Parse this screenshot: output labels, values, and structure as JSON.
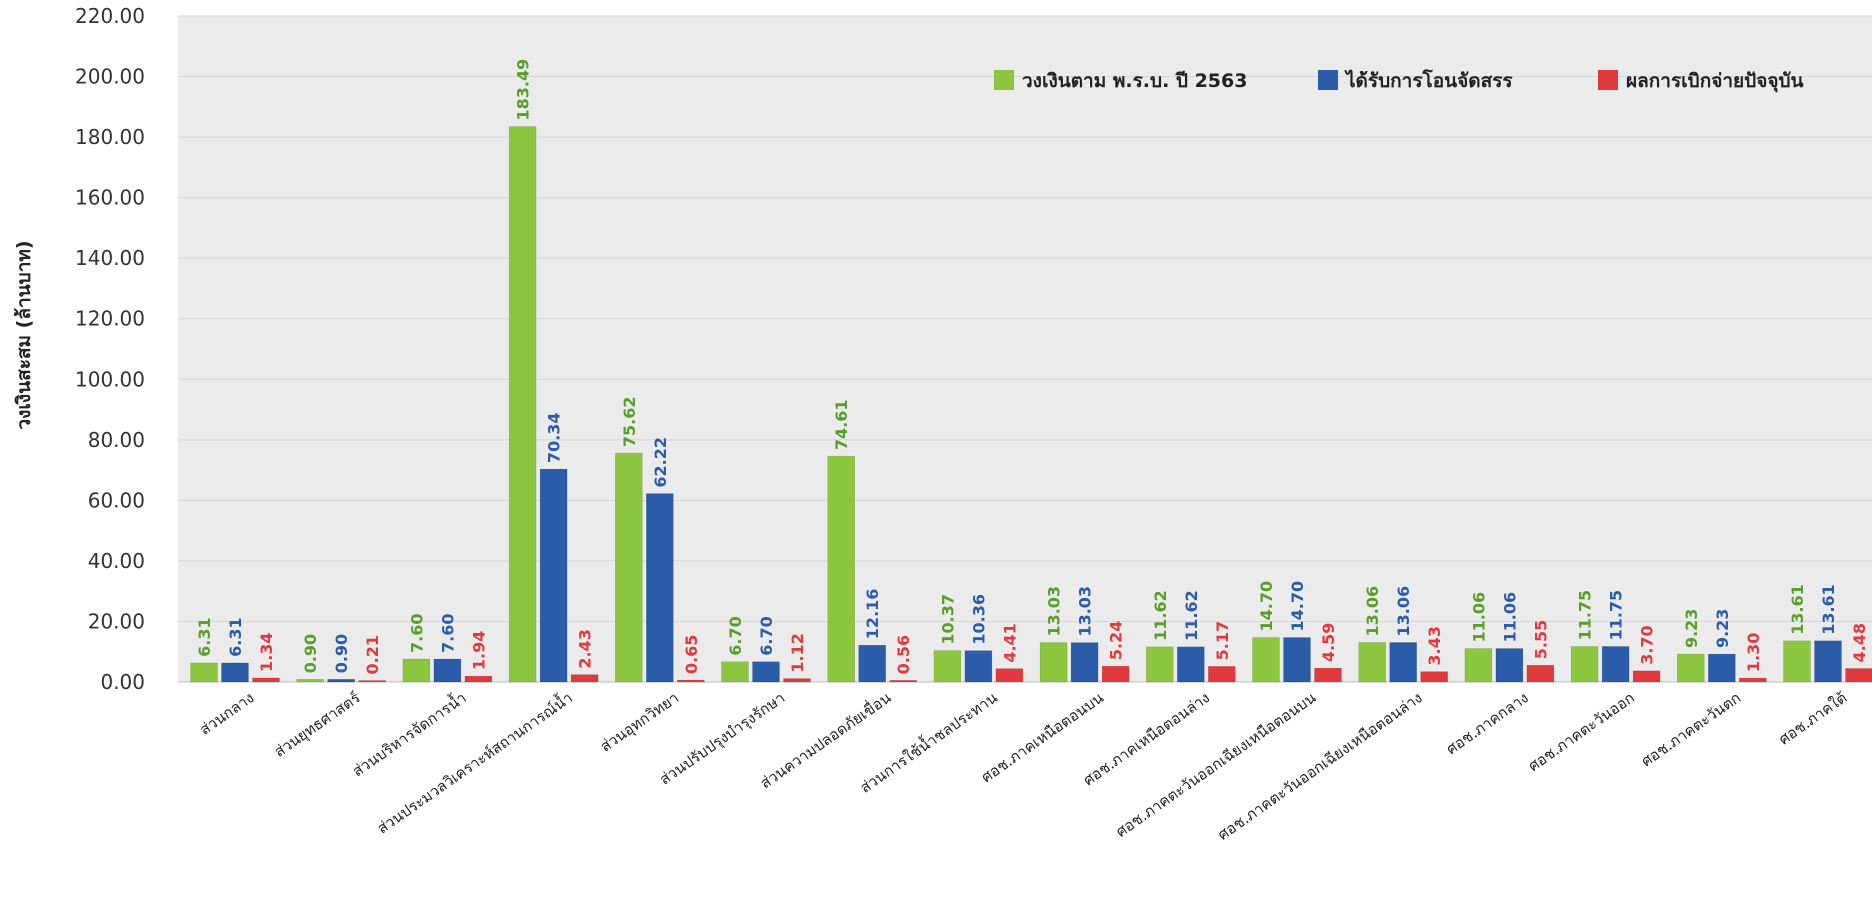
{
  "chart_data": {
    "type": "bar",
    "title": "",
    "xlabel": "",
    "ylabel": "วงเงินสะสม (ล้านบาท)",
    "ylim": [
      0,
      220
    ],
    "yticks": [
      "0.00",
      "20.00",
      "40.00",
      "60.00",
      "80.00",
      "100.00",
      "120.00",
      "140.00",
      "160.00",
      "180.00",
      "200.00",
      "220.00"
    ],
    "grid": true,
    "legend_position": "top-right",
    "categories": [
      "ส่วนกลาง",
      "ส่วนยุทธศาสตร์",
      "ส่วนบริหารจัดการน้ำ",
      "ส่วนประมวลวิเคราะห์สถานการณ์น้ำ",
      "ส่วนอุทกวิทยา",
      "ส่วนปรับปรุงบำรุงรักษา",
      "ส่วนความปลอดภัยเขื่อน",
      "ส่วนการใช้น้ำชลประทาน",
      "ศอช.ภาคเหนือตอนบน",
      "ศอช.ภาคเหนือตอนล่าง",
      "ศอช.ภาคตะวันออกเฉียงเหนือตอนบน",
      "ศอช.ภาคตะวันออกเฉียงเหนือตอนล่าง",
      "ศอช.ภาคกลาง",
      "ศอช.ภาคตะวันออก",
      "ศอช.ภาคตะวันตก",
      "ศอช.ภาคใต้"
    ],
    "series": [
      {
        "name": "วงเงินตาม พ.ร.บ. ปี 2563",
        "color": "#8cc63e",
        "values": [
          6.31,
          0.9,
          7.6,
          183.49,
          75.62,
          6.7,
          74.61,
          10.37,
          13.03,
          11.62,
          14.7,
          13.06,
          11.06,
          11.75,
          9.23,
          13.61
        ],
        "labels": [
          "6.31",
          "0.90",
          "7.60",
          "183.49",
          "75.62",
          "6.70",
          "74.61",
          "10.37",
          "13.03",
          "11.62",
          "14.70",
          "13.06",
          "11.06",
          "11.75",
          "9.23",
          "13.61"
        ]
      },
      {
        "name": "ได้รับการโอนจัดสรร",
        "color": "#2a5caa",
        "values": [
          6.31,
          0.9,
          7.6,
          70.34,
          62.22,
          6.7,
          12.16,
          10.36,
          13.03,
          11.62,
          14.7,
          13.06,
          11.06,
          11.75,
          9.23,
          13.61
        ],
        "labels": [
          "6.31",
          "0.90",
          "7.60",
          "70.34",
          "62.22",
          "6.70",
          "12.16",
          "10.36",
          "13.03",
          "11.62",
          "14.70",
          "13.06",
          "11.06",
          "11.75",
          "9.23",
          "13.61"
        ]
      },
      {
        "name": "ผลการเบิกจ่ายปัจจุบัน",
        "color": "#e03a3e",
        "values": [
          1.34,
          0.21,
          1.94,
          2.43,
          0.65,
          1.12,
          0.56,
          4.41,
          5.24,
          5.17,
          4.59,
          3.43,
          5.55,
          3.7,
          1.3,
          4.48
        ],
        "labels": [
          "1.34",
          "0.21",
          "1.94",
          "2.43",
          "0.65",
          "1.12",
          "0.56",
          "4.41",
          "5.24",
          "5.17",
          "4.59",
          "3.43",
          "5.55",
          "3.70",
          "1.30",
          "4.48"
        ]
      }
    ],
    "colors": {
      "plot_background": "#ebebeb",
      "gridline": "#d6d6d6",
      "green_label": "#5a9e2a",
      "blue_label": "#2a5caa",
      "red_label": "#e03a3e"
    }
  }
}
